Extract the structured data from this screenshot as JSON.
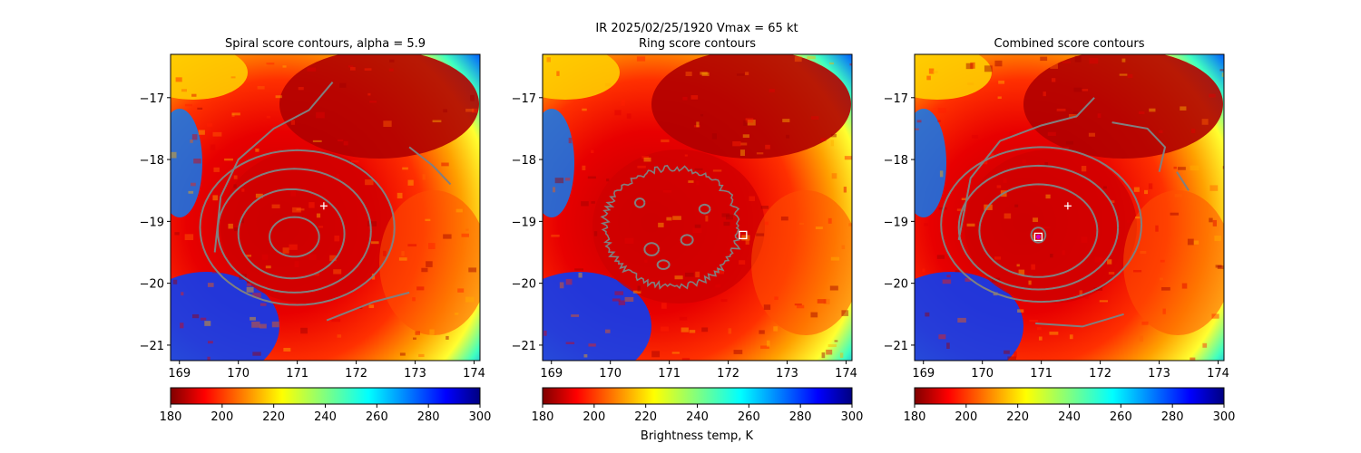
{
  "suptitle": "IR  2025/02/25/1920    Vmax = 65 kt",
  "colormap": {
    "name": "jet_r",
    "stops": [
      "#800000",
      "#ff0000",
      "#ff8000",
      "#ffff00",
      "#80ff80",
      "#00ffff",
      "#0080ff",
      "#0000ff",
      "#000080"
    ]
  },
  "colorbar_label": "Brightness temp, K",
  "colors": {
    "contour": "#808080",
    "marker_center": "#ffffff",
    "marker_square": "#ffffff",
    "combined_marker": "#cc00cc"
  },
  "chart_data": [
    {
      "type": "heatmap",
      "title": "Spiral score contours, alpha =  5.9",
      "xlim": [
        168.85,
        174.1
      ],
      "ylim": [
        -21.25,
        -16.3
      ],
      "xticks": [
        169,
        170,
        171,
        172,
        173,
        174
      ],
      "yticks": [
        -17,
        -18,
        -19,
        -20,
        -21
      ],
      "colorbar": {
        "range": [
          180,
          300
        ],
        "ticks": [
          180,
          200,
          220,
          240,
          260,
          280,
          300
        ]
      },
      "markers": [
        {
          "kind": "plus",
          "x": 171.45,
          "y": -18.75
        }
      ],
      "contours": [
        {
          "cx": 170.95,
          "cy": -19.25,
          "rx": 0.42,
          "ry": 0.32
        },
        {
          "cx": 170.9,
          "cy": -19.2,
          "rx": 0.9,
          "ry": 0.72
        },
        {
          "cx": 170.95,
          "cy": -19.15,
          "rx": 1.3,
          "ry": 1.0
        },
        {
          "cx": 171.0,
          "cy": -19.1,
          "rx": 1.65,
          "ry": 1.25
        }
      ],
      "open_contours": [
        [
          [
            169.6,
            -19.5
          ],
          [
            169.7,
            -18.6
          ],
          [
            170.0,
            -18.0
          ],
          [
            170.6,
            -17.5
          ],
          [
            171.2,
            -17.2
          ],
          [
            171.6,
            -16.75
          ]
        ],
        [
          [
            171.5,
            -20.6
          ],
          [
            172.3,
            -20.3
          ],
          [
            172.9,
            -20.15
          ]
        ],
        [
          [
            172.9,
            -17.8
          ],
          [
            173.3,
            -18.1
          ],
          [
            173.6,
            -18.4
          ]
        ]
      ]
    },
    {
      "type": "heatmap",
      "title": "Ring score contours",
      "xlim": [
        168.85,
        174.1
      ],
      "ylim": [
        -21.25,
        -16.3
      ],
      "xticks": [
        169,
        170,
        171,
        172,
        173,
        174
      ],
      "yticks": [
        -17,
        -18,
        -19,
        -20,
        -21
      ],
      "colorbar": {
        "range": [
          180,
          300
        ],
        "ticks": [
          180,
          200,
          220,
          240,
          260,
          280,
          300
        ]
      },
      "markers": [
        {
          "kind": "square",
          "x": 172.25,
          "y": -19.22
        }
      ],
      "contours": [
        {
          "cx": 171.05,
          "cy": -19.1,
          "rx": 1.15,
          "ry": 0.95,
          "wiggly": true
        },
        {
          "cx": 170.7,
          "cy": -19.45,
          "rx": 0.12,
          "ry": 0.1
        },
        {
          "cx": 171.3,
          "cy": -19.3,
          "rx": 0.1,
          "ry": 0.08
        },
        {
          "cx": 170.5,
          "cy": -18.7,
          "rx": 0.08,
          "ry": 0.07
        },
        {
          "cx": 171.6,
          "cy": -18.8,
          "rx": 0.09,
          "ry": 0.07
        },
        {
          "cx": 170.9,
          "cy": -19.7,
          "rx": 0.1,
          "ry": 0.07
        }
      ],
      "open_contours": []
    },
    {
      "type": "heatmap",
      "title": "Combined score contours",
      "xlim": [
        168.85,
        174.1
      ],
      "ylim": [
        -21.25,
        -16.3
      ],
      "xticks": [
        169,
        170,
        171,
        172,
        173,
        174
      ],
      "yticks": [
        -17,
        -18,
        -19,
        -20,
        -21
      ],
      "colorbar": {
        "range": [
          180,
          300
        ],
        "ticks": [
          180,
          200,
          220,
          240,
          260,
          280,
          300
        ]
      },
      "markers": [
        {
          "kind": "plus",
          "x": 171.45,
          "y": -18.75
        },
        {
          "kind": "square",
          "x": 170.95,
          "y": -19.25
        }
      ],
      "contours": [
        {
          "cx": 170.95,
          "cy": -19.22,
          "rx": 0.12,
          "ry": 0.12
        },
        {
          "cx": 170.95,
          "cy": -19.15,
          "rx": 1.0,
          "ry": 0.75
        },
        {
          "cx": 170.95,
          "cy": -19.1,
          "rx": 1.35,
          "ry": 1.0
        },
        {
          "cx": 171.0,
          "cy": -19.05,
          "rx": 1.7,
          "ry": 1.25
        }
      ],
      "open_contours": [
        [
          [
            169.6,
            -19.3
          ],
          [
            169.8,
            -18.3
          ],
          [
            170.3,
            -17.7
          ],
          [
            171.0,
            -17.45
          ],
          [
            171.6,
            -17.3
          ],
          [
            171.9,
            -17.0
          ]
        ],
        [
          [
            172.2,
            -17.4
          ],
          [
            172.8,
            -17.5
          ],
          [
            173.1,
            -17.8
          ],
          [
            173.0,
            -18.2
          ]
        ],
        [
          [
            170.9,
            -20.65
          ],
          [
            171.7,
            -20.7
          ],
          [
            172.4,
            -20.5
          ]
        ],
        [
          [
            173.3,
            -18.2
          ],
          [
            173.5,
            -18.5
          ]
        ]
      ]
    }
  ]
}
